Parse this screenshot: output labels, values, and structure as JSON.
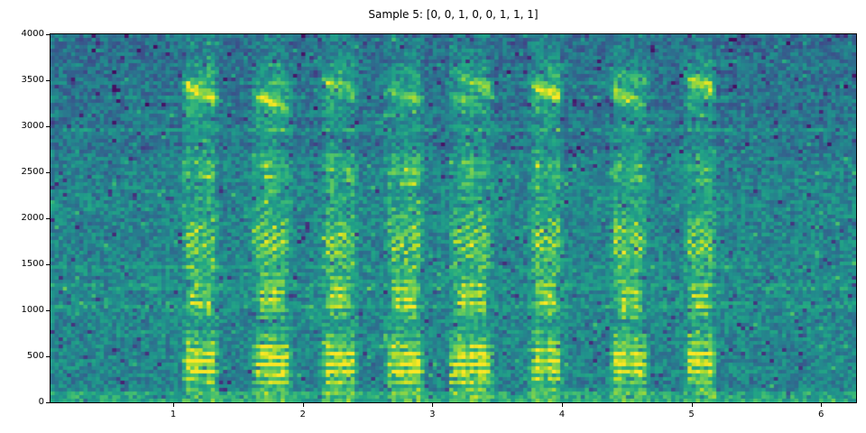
{
  "chart_data": {
    "type": "heatmap",
    "subtype": "audio-spectrogram",
    "title": "Sample 5: [0, 0, 1, 0, 0, 1, 1, 1]",
    "xlabel": "",
    "ylabel": "",
    "x_range": [
      0.053,
      6.27
    ],
    "y_range": [
      0,
      4000
    ],
    "x_ticks": [
      1,
      2,
      3,
      4,
      5,
      6
    ],
    "y_ticks": [
      0,
      500,
      1000,
      1500,
      2000,
      2500,
      3000,
      3500,
      4000
    ],
    "legend": "none",
    "grid": "off",
    "colormap": "viridis",
    "colormap_stops": [
      "#440154",
      "#482475",
      "#414487",
      "#355f8d",
      "#2a788e",
      "#21918c",
      "#22a884",
      "#44bf70",
      "#7ad151",
      "#bddf26",
      "#fde725"
    ],
    "sequence_labels": [
      0,
      0,
      1,
      0,
      0,
      1,
      1,
      1
    ],
    "utterances": [
      {
        "center": 1.21,
        "halfwidth": 0.155,
        "label": 0,
        "low_amp": 1.0,
        "mid_amp": 1.2,
        "upper_amp": 0.3,
        "upper_freq": 3380,
        "pitch_hz": 104
      },
      {
        "center": 1.76,
        "halfwidth": 0.165,
        "label": 0,
        "low_amp": 1.05,
        "mid_amp": 1.1,
        "upper_amp": 0.24,
        "upper_freq": 3300,
        "pitch_hz": 98
      },
      {
        "center": 2.28,
        "halfwidth": 0.155,
        "label": 1,
        "low_amp": 1.0,
        "mid_amp": 0.9,
        "upper_amp": 0.2,
        "upper_freq": 3430,
        "pitch_hz": 102
      },
      {
        "center": 2.79,
        "halfwidth": 0.165,
        "label": 0,
        "low_amp": 0.95,
        "mid_amp": 1.05,
        "upper_amp": 0.16,
        "upper_freq": 3350,
        "pitch_hz": 100
      },
      {
        "center": 3.3,
        "halfwidth": 0.185,
        "label": 0,
        "low_amp": 1.05,
        "mid_amp": 1.0,
        "upper_amp": 0.21,
        "upper_freq": 3400,
        "pitch_hz": 96
      },
      {
        "center": 3.875,
        "halfwidth": 0.145,
        "label": 1,
        "low_amp": 0.95,
        "mid_amp": 0.9,
        "upper_amp": 0.3,
        "upper_freq": 3400,
        "pitch_hz": 105
      },
      {
        "center": 4.52,
        "halfwidth": 0.16,
        "label": 1,
        "low_amp": 1.0,
        "mid_amp": 0.85,
        "upper_amp": 0.24,
        "upper_freq": 3380,
        "pitch_hz": 99
      },
      {
        "center": 5.07,
        "halfwidth": 0.135,
        "label": 1,
        "low_amp": 1.0,
        "mid_amp": 0.9,
        "upper_amp": 0.27,
        "upper_freq": 3430,
        "pitch_hz": 103
      }
    ],
    "background_stripes": [
      {
        "freq_hz": 1050,
        "amp": 0.09,
        "halfwidth_hz": 30
      },
      {
        "freq_hz": 1255,
        "amp": 0.1,
        "halfwidth_hz": 35
      },
      {
        "freq_hz": 1460,
        "amp": 0.05,
        "halfwidth_hz": 25
      },
      {
        "freq_hz": 2100,
        "amp": 0.035,
        "halfwidth_hz": 30
      },
      {
        "freq_hz": 2960,
        "amp": 0.11,
        "halfwidth_hz": 35
      },
      {
        "freq_hz": 3135,
        "amp": 0.055,
        "halfwidth_hz": 28
      },
      {
        "freq_hz": 3310,
        "amp": 0.065,
        "halfwidth_hz": 28
      },
      {
        "freq_hz": 3480,
        "amp": 0.055,
        "halfwidth_hz": 28
      },
      {
        "freq_hz": 3650,
        "amp": 0.045,
        "halfwidth_hz": 28
      },
      {
        "freq_hz": 2780,
        "amp": -0.04,
        "halfwidth_hz": 60
      },
      {
        "freq_hz": 215,
        "amp": -0.03,
        "halfwidth_hz": 45
      }
    ],
    "seed": 42,
    "grid_cols": 196,
    "grid_rows": 102
  }
}
